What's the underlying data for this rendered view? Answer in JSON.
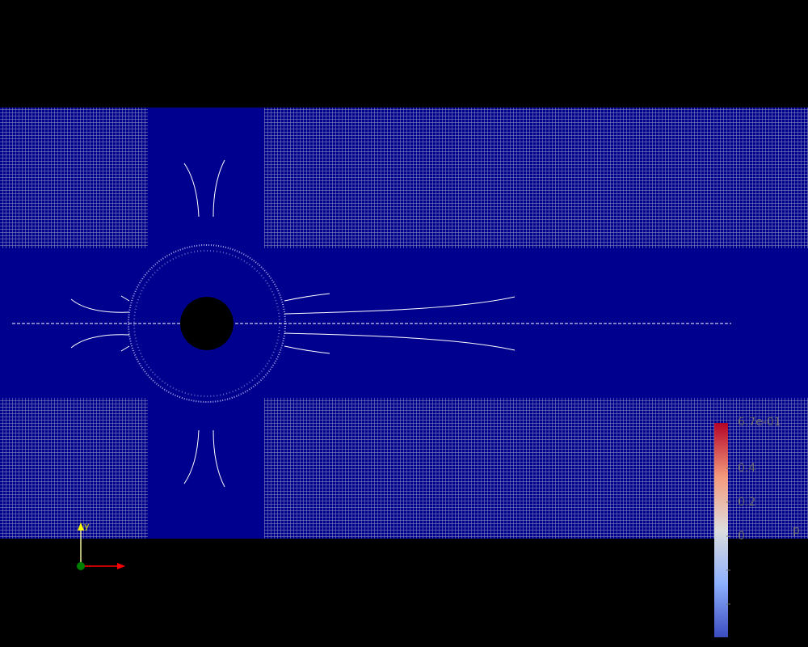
{
  "scene": {
    "background": "#000000",
    "mesh_fill": "#00008f",
    "mesh_line": "#b8b8c8",
    "streamline": "#ffffff",
    "cylinder": "#000000"
  },
  "colorbar": {
    "title": "p",
    "top_label": "6.7e-01",
    "tick_labels": [
      "0.4",
      "0.2",
      "0"
    ],
    "colors": [
      "#b40426",
      "#f49a7b",
      "#dddddd",
      "#8db0fe",
      "#3b4cc0"
    ]
  },
  "axes": {
    "x_color": "#ff0000",
    "y_color": "#ffff00",
    "origin_color": "#008000",
    "y_label": "y"
  }
}
